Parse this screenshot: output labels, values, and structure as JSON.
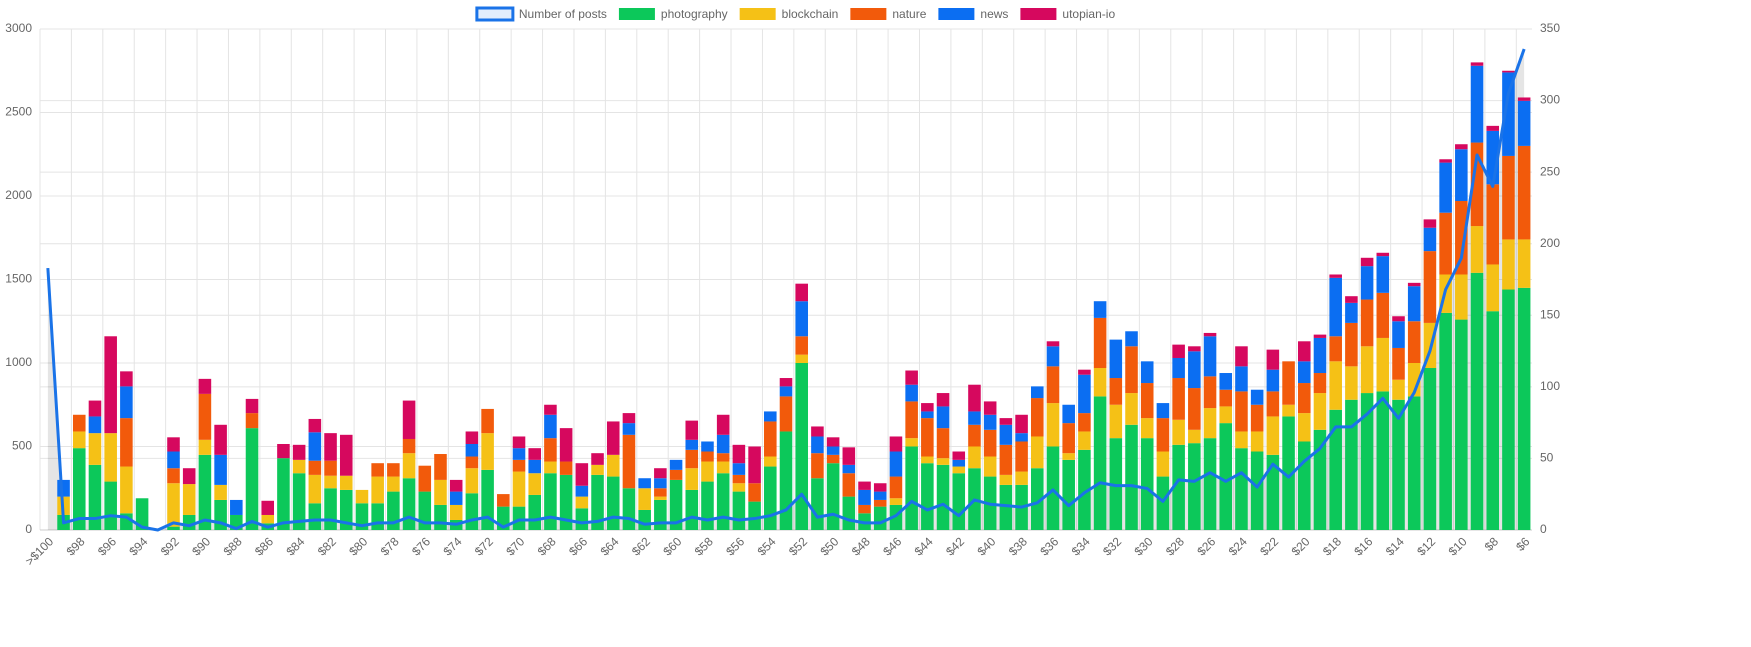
{
  "chart_data": {
    "type": "bar",
    "stacked": true,
    "legend": "top",
    "grid": true,
    "categories": [
      ">$100",
      null,
      "$98",
      null,
      "$96",
      null,
      "$94",
      null,
      "$92",
      null,
      "$90",
      null,
      "$88",
      null,
      "$86",
      null,
      "$84",
      null,
      "$82",
      null,
      "$80",
      null,
      "$78",
      null,
      "$76",
      null,
      "$74",
      null,
      "$72",
      null,
      "$70",
      null,
      "$68",
      null,
      "$66",
      null,
      "$64",
      null,
      "$62",
      null,
      "$60",
      null,
      "$58",
      null,
      "$56",
      null,
      "$54",
      null,
      "$52",
      null,
      "$50",
      null,
      "$48",
      null,
      "$46",
      null,
      "$44",
      null,
      "$42",
      null,
      "$40",
      null,
      "$38",
      null,
      "$36",
      null,
      "$34",
      null,
      "$32",
      null,
      "$30",
      null,
      "$28",
      null,
      "$26",
      null,
      "$24",
      null,
      "$22",
      null,
      "$20",
      null,
      "$18",
      null,
      "$16",
      null,
      "$14",
      null,
      "$12",
      null,
      "$10",
      null,
      "$8",
      null,
      "$6"
    ],
    "ylim": [
      0,
      3000
    ],
    "yticks": [
      0,
      500,
      1000,
      1500,
      2000,
      2500,
      3000
    ],
    "y2lim": [
      0,
      350
    ],
    "y2ticks": [
      0,
      50,
      100,
      150,
      200,
      250,
      300,
      350
    ],
    "series": [
      {
        "name": "Number of posts",
        "type": "line",
        "axis": "y2",
        "color": "#1a73e8",
        "values": [
          183,
          5,
          8,
          8,
          10,
          9,
          2,
          0,
          5,
          3,
          7,
          5,
          1,
          6,
          2,
          5,
          6,
          7,
          7,
          5,
          3,
          5,
          5,
          9,
          5,
          5,
          4,
          7,
          9,
          2,
          7,
          7,
          9,
          7,
          5,
          6,
          9,
          8,
          4,
          5,
          5,
          9,
          7,
          9,
          7,
          8,
          10,
          14,
          25,
          9,
          11,
          7,
          5,
          5,
          10,
          20,
          14,
          18,
          10,
          21,
          18,
          17,
          16,
          19,
          28,
          17,
          26,
          33,
          31,
          31,
          29,
          20,
          35,
          34,
          40,
          34,
          40,
          30,
          46,
          37,
          48,
          57,
          72,
          72,
          81,
          92,
          78,
          96,
          125,
          168,
          190,
          262,
          240,
          305,
          336
        ]
      },
      {
        "name": "photography",
        "color": "#0cc85a",
        "values": [
          0,
          90,
          490,
          390,
          290,
          100,
          190,
          0,
          20,
          90,
          450,
          180,
          90,
          610,
          40,
          430,
          340,
          160,
          250,
          240,
          160,
          160,
          230,
          310,
          230,
          150,
          60,
          220,
          360,
          140,
          140,
          210,
          340,
          330,
          130,
          330,
          320,
          250,
          120,
          180,
          300,
          240,
          290,
          340,
          230,
          170,
          380,
          590,
          1000,
          310,
          400,
          200,
          100,
          140,
          150,
          500,
          400,
          390,
          340,
          370,
          320,
          270,
          270,
          370,
          500,
          420,
          480,
          800,
          550,
          630,
          550,
          320,
          510,
          520,
          550,
          640,
          490,
          470,
          450,
          680,
          530,
          600,
          720,
          780,
          820,
          830,
          780,
          800,
          970,
          1300,
          1260,
          1540,
          1310,
          1440,
          1450
        ]
      },
      {
        "name": "blockchain",
        "color": "#f5c116",
        "values": [
          0,
          110,
          100,
          190,
          290,
          280,
          0,
          0,
          260,
          185,
          90,
          90,
          0,
          0,
          50,
          0,
          80,
          170,
          75,
          85,
          80,
          160,
          90,
          150,
          0,
          150,
          90,
          150,
          220,
          0,
          210,
          130,
          70,
          0,
          70,
          60,
          130,
          0,
          130,
          20,
          0,
          130,
          120,
          70,
          50,
          0,
          60,
          0,
          50,
          0,
          0,
          0,
          0,
          0,
          40,
          50,
          40,
          40,
          40,
          130,
          120,
          60,
          80,
          190,
          260,
          40,
          110,
          170,
          200,
          190,
          120,
          150,
          150,
          80,
          180,
          100,
          100,
          120,
          230,
          70,
          170,
          220,
          290,
          200,
          280,
          320,
          120,
          200,
          270,
          230,
          270,
          280,
          280,
          300,
          290
        ]
      },
      {
        "name": "nature",
        "color": "#f25a0b",
        "values": [
          0,
          0,
          100,
          0,
          0,
          290,
          0,
          0,
          90,
          0,
          275,
          0,
          0,
          90,
          0,
          0,
          0,
          85,
          90,
          0,
          0,
          80,
          80,
          85,
          155,
          155,
          0,
          70,
          145,
          75,
          70,
          0,
          140,
          80,
          0,
          0,
          0,
          320,
          0,
          50,
          60,
          110,
          60,
          50,
          50,
          110,
          210,
          210,
          110,
          150,
          50,
          140,
          50,
          40,
          130,
          220,
          230,
          180,
          0,
          130,
          160,
          180,
          180,
          230,
          220,
          180,
          110,
          300,
          160,
          280,
          210,
          200,
          250,
          250,
          190,
          100,
          240,
          160,
          150,
          260,
          180,
          120,
          150,
          260,
          280,
          270,
          190,
          250,
          430,
          370,
          440,
          500,
          480,
          500,
          560
        ]
      },
      {
        "name": "news",
        "color": "#0b6ef2",
        "values": [
          0,
          100,
          0,
          100,
          0,
          190,
          0,
          0,
          100,
          0,
          0,
          180,
          90,
          0,
          0,
          0,
          0,
          170,
          0,
          0,
          0,
          0,
          0,
          0,
          0,
          0,
          80,
          75,
          0,
          0,
          70,
          80,
          140,
          0,
          65,
          0,
          0,
          70,
          60,
          60,
          60,
          60,
          60,
          110,
          70,
          0,
          60,
          60,
          210,
          100,
          50,
          50,
          90,
          50,
          150,
          100,
          40,
          130,
          40,
          80,
          90,
          120,
          50,
          70,
          120,
          110,
          230,
          100,
          230,
          90,
          130,
          90,
          120,
          220,
          240,
          100,
          150,
          90,
          130,
          0,
          130,
          210,
          350,
          120,
          200,
          220,
          160,
          210,
          140,
          300,
          310,
          460,
          320,
          500,
          270
        ]
      },
      {
        "name": "utopian-io",
        "color": "#d6085e",
        "values": [
          0,
          0,
          0,
          95,
          580,
          90,
          0,
          0,
          85,
          95,
          90,
          180,
          0,
          85,
          85,
          85,
          90,
          80,
          165,
          245,
          0,
          0,
          0,
          230,
          0,
          0,
          70,
          75,
          0,
          0,
          70,
          70,
          60,
          200,
          135,
          70,
          200,
          60,
          0,
          60,
          0,
          115,
          0,
          120,
          110,
          220,
          0,
          50,
          105,
          60,
          55,
          105,
          50,
          50,
          90,
          85,
          50,
          80,
          50,
          160,
          80,
          40,
          110,
          0,
          30,
          0,
          30,
          0,
          0,
          0,
          0,
          0,
          80,
          30,
          20,
          0,
          120,
          0,
          120,
          0,
          120,
          20,
          20,
          40,
          50,
          20,
          30,
          20,
          50,
          20,
          30,
          20,
          30,
          10,
          20
        ]
      }
    ]
  }
}
